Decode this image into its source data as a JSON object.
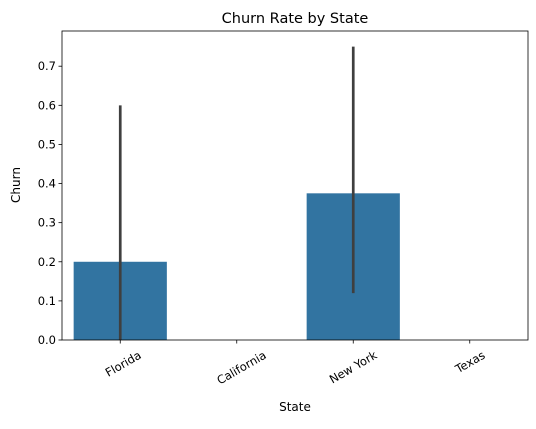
{
  "chart_data": {
    "type": "bar",
    "title": "Churn Rate by State",
    "xlabel": "State",
    "ylabel": "Churn",
    "categories": [
      "Florida",
      "California",
      "New York",
      "Texas"
    ],
    "values": [
      0.2,
      0.0,
      0.375,
      0.0
    ],
    "error_bars": [
      {
        "low": 0.0,
        "high": 0.6
      },
      null,
      {
        "low": 0.12,
        "high": 0.75
      },
      null
    ],
    "ylim": [
      0,
      0.79
    ],
    "yticks": [
      "0.0",
      "0.1",
      "0.2",
      "0.3",
      "0.4",
      "0.5",
      "0.6",
      "0.7"
    ],
    "grid": false,
    "colors": {
      "bar": "#3274a1",
      "error_bar": "#3f3f3f",
      "axis": "#000000"
    }
  }
}
